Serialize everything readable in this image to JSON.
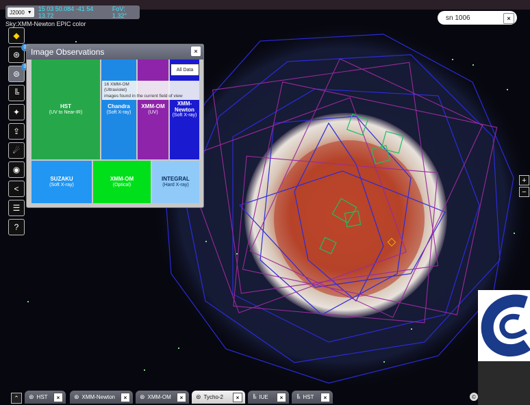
{
  "topbar": {
    "frame": "J2000",
    "coordinates": "15 03 50.084 -41 54 13.72",
    "fov": "FoV: 1.32°"
  },
  "sky_label": "Sky:XMM-Newton EPIC color",
  "search": {
    "value": "sn 1006",
    "clear_label": "×"
  },
  "toolbar": {
    "items": [
      {
        "name": "layers-icon",
        "glyph": "◆"
      },
      {
        "name": "catalog-icon",
        "glyph": "⊛",
        "badge": "0"
      },
      {
        "name": "observations-icon",
        "glyph": "⊜",
        "badge": "0"
      },
      {
        "name": "spectra-icon",
        "glyph": "╚"
      },
      {
        "name": "planning-icon",
        "glyph": "✦"
      },
      {
        "name": "upload-icon",
        "glyph": "⇪"
      },
      {
        "name": "target-icon",
        "glyph": "☄"
      },
      {
        "name": "camera-icon",
        "glyph": "◉"
      },
      {
        "name": "share-icon",
        "glyph": "<"
      },
      {
        "name": "menu-icon",
        "glyph": "☰"
      },
      {
        "name": "help-icon",
        "glyph": "?"
      }
    ]
  },
  "panel": {
    "title": "Image Observations",
    "close": "×",
    "all_data": "All Data",
    "tooltip": {
      "line1": "16 XMM-OM",
      "line2": "(Ultraviolet)",
      "line3": "images found in the current field of view"
    },
    "cells": [
      {
        "name": "HST",
        "band": "(UV to Near-IR)",
        "color": "#26a84a"
      },
      {
        "name": "Chandra",
        "band": "(Soft X-ray)",
        "color": "#1e88e5"
      },
      {
        "name": "XMM-OM",
        "band": "(UV)",
        "color": "#8e24aa"
      },
      {
        "name": "XMM-Newton",
        "band": "(Soft X-ray)",
        "color": "#1a1ad0"
      },
      {
        "name": "SUZAKU",
        "band": "(Soft X-ray)",
        "color": "#2196f3"
      },
      {
        "name": "XMM-OM",
        "band": "(Optical)",
        "color": "#00e01a"
      },
      {
        "name": "INTEGRAL",
        "band": "(Hard X-ray)",
        "color": "#90caf9"
      }
    ]
  },
  "zoom": {
    "in": "+",
    "out": "−"
  },
  "tabs": [
    {
      "label": "HST",
      "icon": "catalog-icon",
      "active": false
    },
    {
      "label": "XMM-Newton",
      "icon": "catalog-icon",
      "active": false
    },
    {
      "label": "XMM-OM",
      "icon": "catalog-icon",
      "active": false
    },
    {
      "label": "Tycho-2",
      "icon": "observations-icon",
      "active": true
    },
    {
      "label": "IUE",
      "icon": "spectra-icon",
      "active": false
    },
    {
      "label": "HST",
      "icon": "spectra-icon",
      "active": false
    }
  ],
  "tab_close": "×",
  "collapse": "⌃"
}
